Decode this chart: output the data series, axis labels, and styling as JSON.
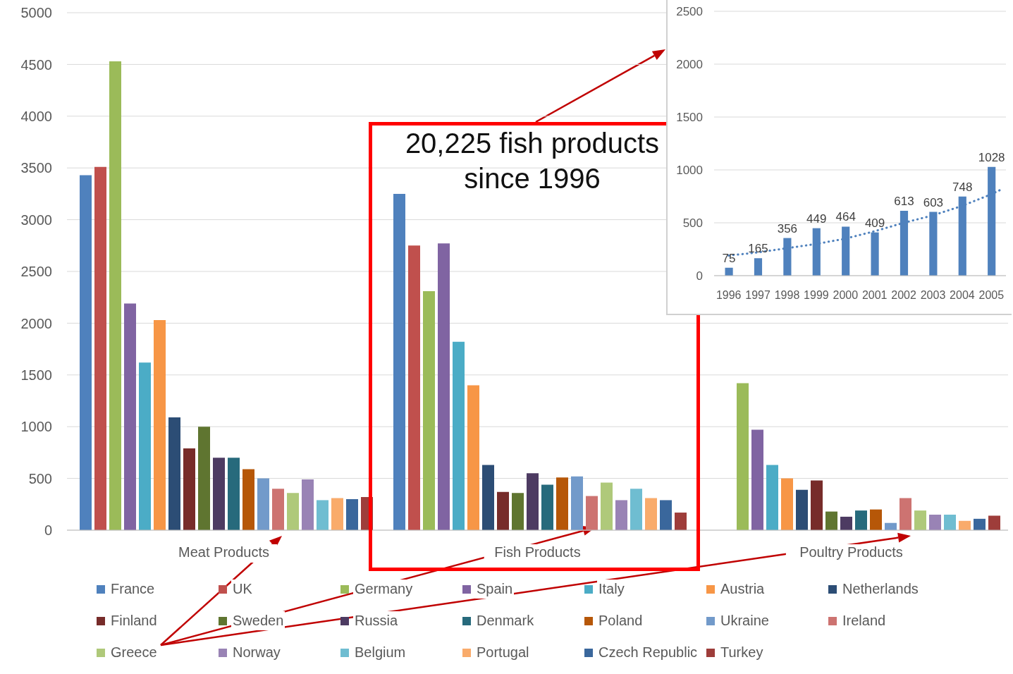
{
  "chart_data": [
    {
      "type": "bar",
      "categories": [
        "Meat Products",
        "Fish Products",
        "Poultry Products"
      ],
      "series": [
        {
          "name": "France",
          "color": "#4f81bd",
          "values": [
            3430,
            3250,
            null
          ]
        },
        {
          "name": "UK",
          "color": "#c0504d",
          "values": [
            3510,
            2750,
            null
          ]
        },
        {
          "name": "Germany",
          "color": "#9bbb59",
          "values": [
            4530,
            2310,
            1420
          ]
        },
        {
          "name": "Spain",
          "color": "#8064a2",
          "values": [
            2190,
            2770,
            970
          ]
        },
        {
          "name": "Italy",
          "color": "#4bacc6",
          "values": [
            1620,
            1820,
            630
          ]
        },
        {
          "name": "Austria",
          "color": "#f79646",
          "values": [
            2030,
            1400,
            500
          ]
        },
        {
          "name": "Netherlands",
          "color": "#2c4d75",
          "values": [
            1090,
            630,
            390
          ]
        },
        {
          "name": "Finland",
          "color": "#772c2a",
          "values": [
            790,
            370,
            480
          ]
        },
        {
          "name": "Sweden",
          "color": "#5f7530",
          "values": [
            1000,
            360,
            180
          ]
        },
        {
          "name": "Russia",
          "color": "#4d3b62",
          "values": [
            700,
            550,
            130
          ]
        },
        {
          "name": "Denmark",
          "color": "#276a7c",
          "values": [
            700,
            440,
            190
          ]
        },
        {
          "name": "Poland",
          "color": "#b65708",
          "values": [
            590,
            510,
            200
          ]
        },
        {
          "name": "Ukraine",
          "color": "#729aca",
          "values": [
            500,
            520,
            70
          ]
        },
        {
          "name": "Ireland",
          "color": "#cd7371",
          "values": [
            400,
            330,
            310
          ]
        },
        {
          "name": "Greece",
          "color": "#afc97a",
          "values": [
            360,
            460,
            190
          ]
        },
        {
          "name": "Norway",
          "color": "#9983b5",
          "values": [
            490,
            290,
            150
          ]
        },
        {
          "name": "Belgium",
          "color": "#6fbdd1",
          "values": [
            290,
            400,
            150
          ]
        },
        {
          "name": "Portugal",
          "color": "#f9ab6b",
          "values": [
            310,
            310,
            90
          ]
        },
        {
          "name": "Czech Republic",
          "color": "#3a679c",
          "values": [
            300,
            290,
            110
          ]
        },
        {
          "name": "Turkey",
          "color": "#9e3d3a",
          "values": [
            320,
            170,
            140
          ]
        }
      ],
      "ylim": [
        0,
        5000
      ],
      "yticks": [
        0,
        500,
        1000,
        1500,
        2000,
        2500,
        3000,
        3500,
        4000,
        4500,
        5000
      ],
      "grid": "y",
      "legend": "bottom",
      "annotations": [
        "20,225 fish products since 1996"
      ]
    },
    {
      "type": "bar",
      "x": [
        1996,
        1997,
        1998,
        1999,
        2000,
        2001,
        2002,
        2003,
        2004,
        2005
      ],
      "series": [
        {
          "color": "#4f81bd",
          "values": [
            75,
            165,
            356,
            449,
            464,
            409,
            613,
            603,
            748,
            1028
          ],
          "value_labels": [
            "75",
            "165",
            "356",
            "449",
            "464",
            "409",
            "613",
            "603",
            "748",
            "1028"
          ]
        },
        {
          "type": "line",
          "color": "#4f81bd",
          "line_style": "dotted",
          "marker": "none",
          "x": [
            1996,
            1997,
            1998,
            1999,
            2000,
            2001,
            2002,
            2003,
            2004,
            2005,
            2005.3
          ],
          "values": [
            190,
            220,
            260,
            300,
            350,
            420,
            500,
            570,
            660,
            770,
            810
          ]
        }
      ],
      "xlim": [
        1995.5,
        2005.5
      ],
      "xticks": [
        1996,
        1997,
        1998,
        1999,
        2000,
        2001,
        2002,
        2003,
        2004,
        2005
      ],
      "ylim": [
        0,
        2500
      ],
      "yticks": [
        0,
        500,
        1000,
        1500,
        2000,
        2500
      ],
      "grid": "y"
    }
  ]
}
